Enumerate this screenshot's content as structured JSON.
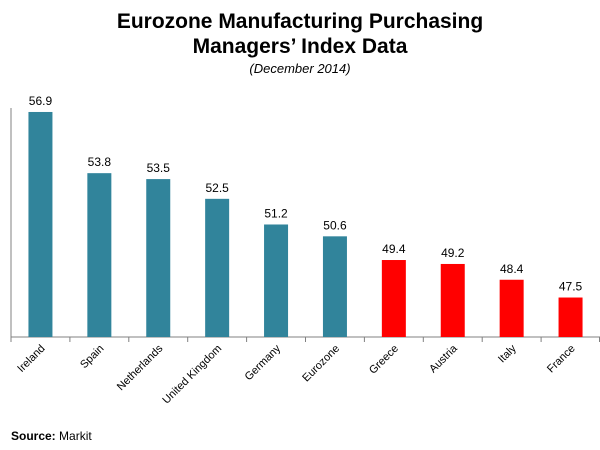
{
  "chart_data": {
    "type": "bar",
    "title_line1": "Eurozone Manufacturing Purchasing",
    "title_line2": "Managers’ Index Data",
    "subtitle": "(December 2014)",
    "categories": [
      "Ireland",
      "Spain",
      "Netherlands",
      "United Kingdom",
      "Germany",
      "Eurozone",
      "Greece",
      "Austria",
      "Italy",
      "France"
    ],
    "values": [
      56.9,
      53.8,
      53.5,
      52.5,
      51.2,
      50.6,
      49.4,
      49.2,
      48.4,
      47.5
    ],
    "value_labels": [
      "56.9",
      "53.8",
      "53.5",
      "52.5",
      "51.2",
      "50.6",
      "49.4",
      "49.2",
      "48.4",
      "47.5"
    ],
    "colors": [
      "#31849B",
      "#31849B",
      "#31849B",
      "#31849B",
      "#31849B",
      "#31849B",
      "#FF0000",
      "#FF0000",
      "#FF0000",
      "#FF0000"
    ],
    "ylim": [
      45.5,
      57.0
    ],
    "grid": false,
    "legend": "none"
  },
  "source": {
    "label": "Source:",
    "text": "Markit"
  }
}
